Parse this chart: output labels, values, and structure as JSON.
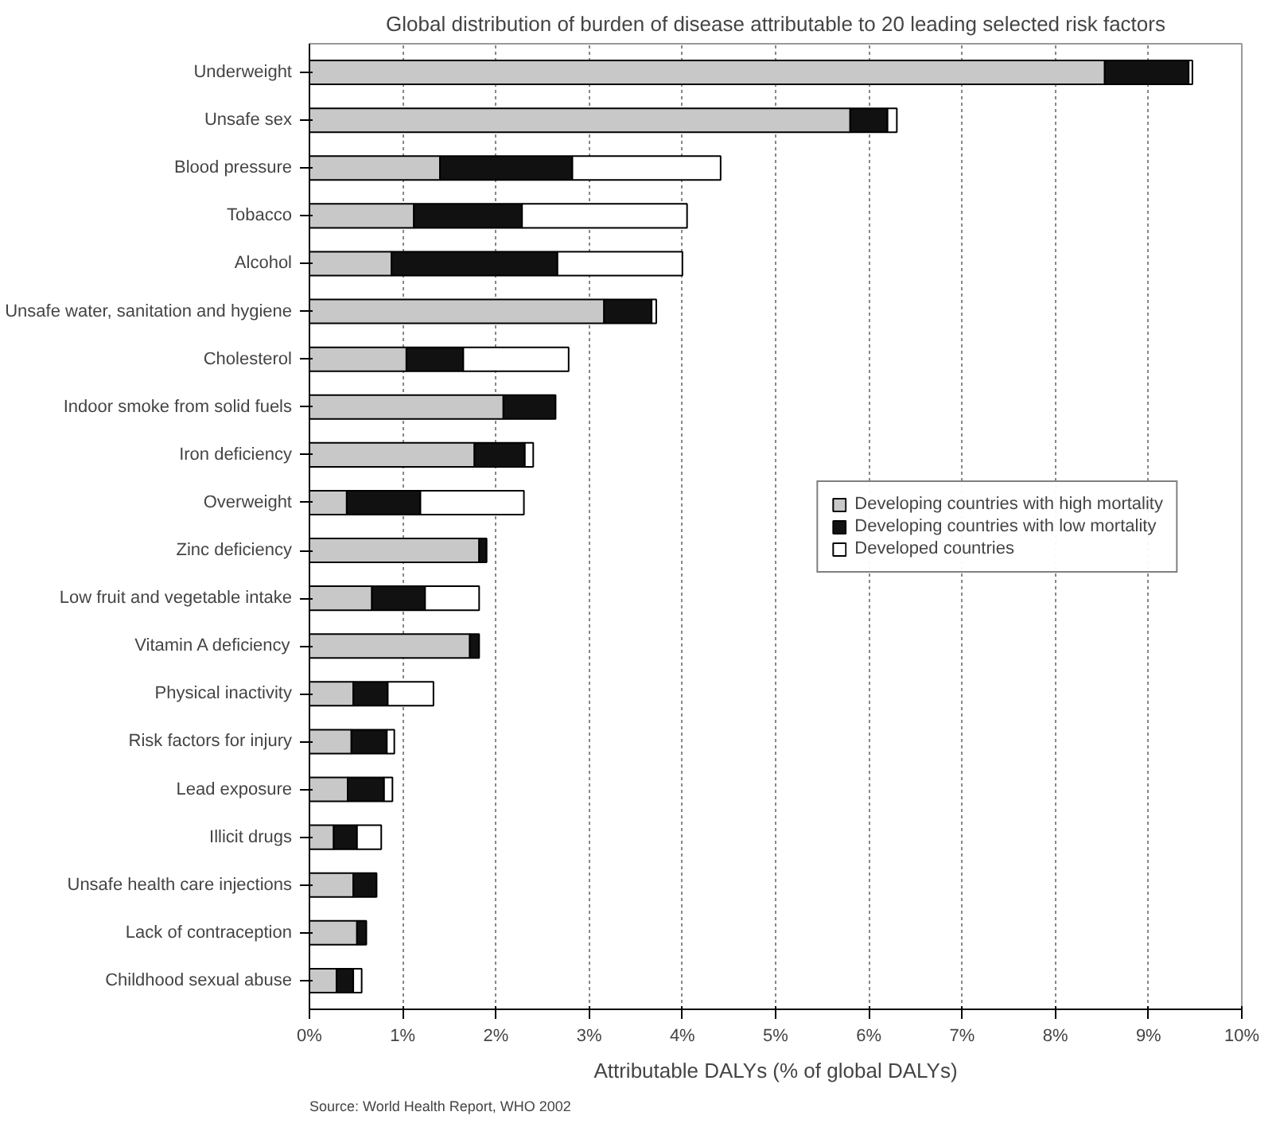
{
  "chart_data": {
    "type": "bar",
    "orientation": "horizontal",
    "stacked": true,
    "title": "Global distribution of burden of disease attributable to 20 leading selected risk factors",
    "xlabel": "Attributable DALYs (% of global DALYs)",
    "categories": [
      "Underweight",
      "Unsafe sex",
      "Blood pressure",
      "Tobacco",
      "Alcohol",
      "Unsafe water, sanitation and hygiene",
      "Cholesterol",
      "Indoor smoke from solid fuels",
      "Iron deficiency",
      "Overweight",
      "Zinc deficiency",
      "Low fruit and vegetable intake",
      "Vitamin A deficiency",
      "Physical inactivity",
      "Risk factors for injury",
      "Lead exposure",
      "Illicit drugs",
      "Unsafe health care injections",
      "Lack of contraception",
      "Childhood sexual abuse"
    ],
    "series": [
      {
        "name": "Developing countries with high mortality",
        "color": "#c8c8c8",
        "values": [
          8.53,
          5.8,
          1.4,
          1.12,
          0.88,
          3.16,
          1.04,
          2.08,
          1.77,
          0.4,
          1.82,
          0.67,
          1.72,
          0.47,
          0.45,
          0.41,
          0.26,
          0.47,
          0.51,
          0.29
        ]
      },
      {
        "name": "Developing countries with low mortality",
        "color": "#111111",
        "values": [
          0.9,
          0.4,
          1.42,
          1.16,
          1.78,
          0.51,
          0.61,
          0.56,
          0.54,
          0.79,
          0.08,
          0.57,
          0.1,
          0.37,
          0.38,
          0.39,
          0.25,
          0.25,
          0.1,
          0.18
        ]
      },
      {
        "name": "Developed countries",
        "color": "#ffffff",
        "values": [
          0.04,
          0.1,
          1.59,
          1.77,
          1.34,
          0.05,
          1.13,
          null,
          0.09,
          1.11,
          null,
          0.58,
          null,
          0.49,
          0.08,
          0.09,
          0.26,
          null,
          null,
          0.09
        ]
      }
    ],
    "xlim": [
      0,
      10
    ],
    "xticks": [
      {
        "value": 0,
        "label": "0%"
      },
      {
        "value": 1,
        "label": "1%"
      },
      {
        "value": 2,
        "label": "2%"
      },
      {
        "value": 3,
        "label": "3%"
      },
      {
        "value": 4,
        "label": "4%"
      },
      {
        "value": 5,
        "label": "5%"
      },
      {
        "value": 6,
        "label": "6%"
      },
      {
        "value": 7,
        "label": "7%"
      },
      {
        "value": 8,
        "label": "8%"
      },
      {
        "value": 9,
        "label": "9%"
      },
      {
        "value": 10,
        "label": "10%"
      }
    ],
    "grid": "x",
    "legend": "right",
    "annotations": [
      "Source: World Health Report, WHO 2002"
    ]
  }
}
